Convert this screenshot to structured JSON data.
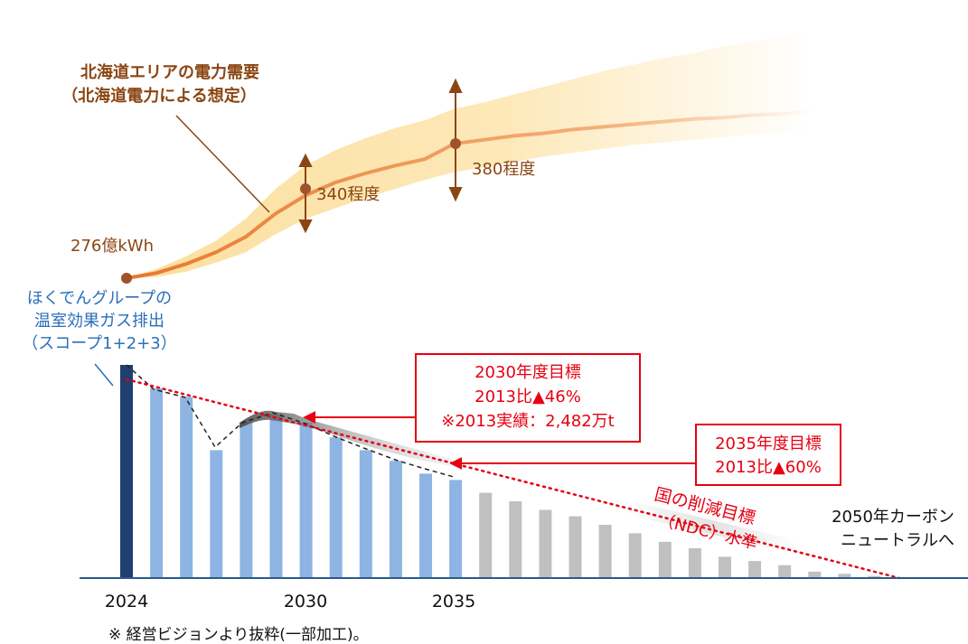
{
  "chart_data": {
    "type": "bar",
    "demand": {
      "title": "北海道エリアの電力需要",
      "subtitle": "（北海道電力による想定）",
      "label_2024": "276億kWh",
      "label_2030": "340程度",
      "label_2035": "380程度",
      "x": [
        2024,
        2025,
        2026,
        2027,
        2028,
        2029,
        2030,
        2031,
        2032,
        2033,
        2034,
        2035,
        2036,
        2037,
        2038,
        2039,
        2040,
        2041,
        2042,
        2043,
        2044,
        2045,
        2046,
        2047
      ],
      "central": [
        276,
        280,
        287,
        296,
        308,
        326,
        340,
        350,
        357,
        363,
        368,
        380,
        383,
        386,
        388,
        391,
        393,
        395,
        397,
        399,
        400,
        402,
        403,
        405
      ],
      "band_low": [
        276,
        277,
        281,
        288,
        296,
        310,
        322,
        330,
        338,
        345,
        352,
        358,
        362,
        366,
        370,
        373,
        376,
        379,
        381,
        383,
        385,
        387,
        388,
        390
      ],
      "band_high": [
        276,
        283,
        293,
        305,
        322,
        345,
        363,
        375,
        384,
        392,
        398,
        407,
        412,
        418,
        424,
        430,
        436,
        441,
        446,
        450,
        455,
        459,
        463,
        466
      ],
      "color": "#e8772e",
      "band_color": "#fbd57e"
    },
    "emissions": {
      "title_lines": [
        "ほくでんグループの",
        "温室効果ガス排出",
        "（スコープ1+2+3）"
      ],
      "x_tick_labels": [
        "2024",
        "2030",
        "2035"
      ],
      "years": [
        2024,
        2025,
        2026,
        2027,
        2028,
        2029,
        2030,
        2031,
        2032,
        2033,
        2034,
        2035,
        2036,
        2037,
        2038,
        2039,
        2040,
        2041,
        2042,
        2043,
        2044,
        2045,
        2046,
        2047,
        2048,
        2049
      ],
      "values": [
        100,
        89,
        85,
        60,
        73,
        77,
        73,
        66,
        60,
        55,
        49,
        46,
        40,
        36,
        32,
        29,
        25,
        21,
        17,
        14,
        10,
        8,
        6,
        3,
        2,
        1
      ],
      "bar_kinds": [
        "actual",
        "plan",
        "plan",
        "plan",
        "plan",
        "plan",
        "plan",
        "plan",
        "plan",
        "plan",
        "plan",
        "plan",
        "outlook",
        "outlook",
        "outlook",
        "outlook",
        "outlook",
        "outlook",
        "outlook",
        "outlook",
        "outlook",
        "outlook",
        "outlook",
        "outlook",
        "outlook",
        "outlook"
      ],
      "colors": {
        "actual": "#1f3f70",
        "plan": "#8eb4e3",
        "outlook": "#c0c0c0",
        "target_line": "#e60012",
        "box_border": "#e60012"
      },
      "target_2030": {
        "lines": [
          "2030年度目標",
          "2013比▲46%",
          "※2013実績：2,482万t"
        ]
      },
      "target_2035": {
        "lines": [
          "2035年度目標",
          "2013比▲60%"
        ]
      },
      "ndc_label_lines": [
        "国の削減目標",
        "（NDC）水準"
      ],
      "neutral_label_lines": [
        "2050年カーボン",
        "ニュートラルへ"
      ]
    },
    "footnote": "※ 経営ビジョンより抜粋(一部加工)。"
  }
}
